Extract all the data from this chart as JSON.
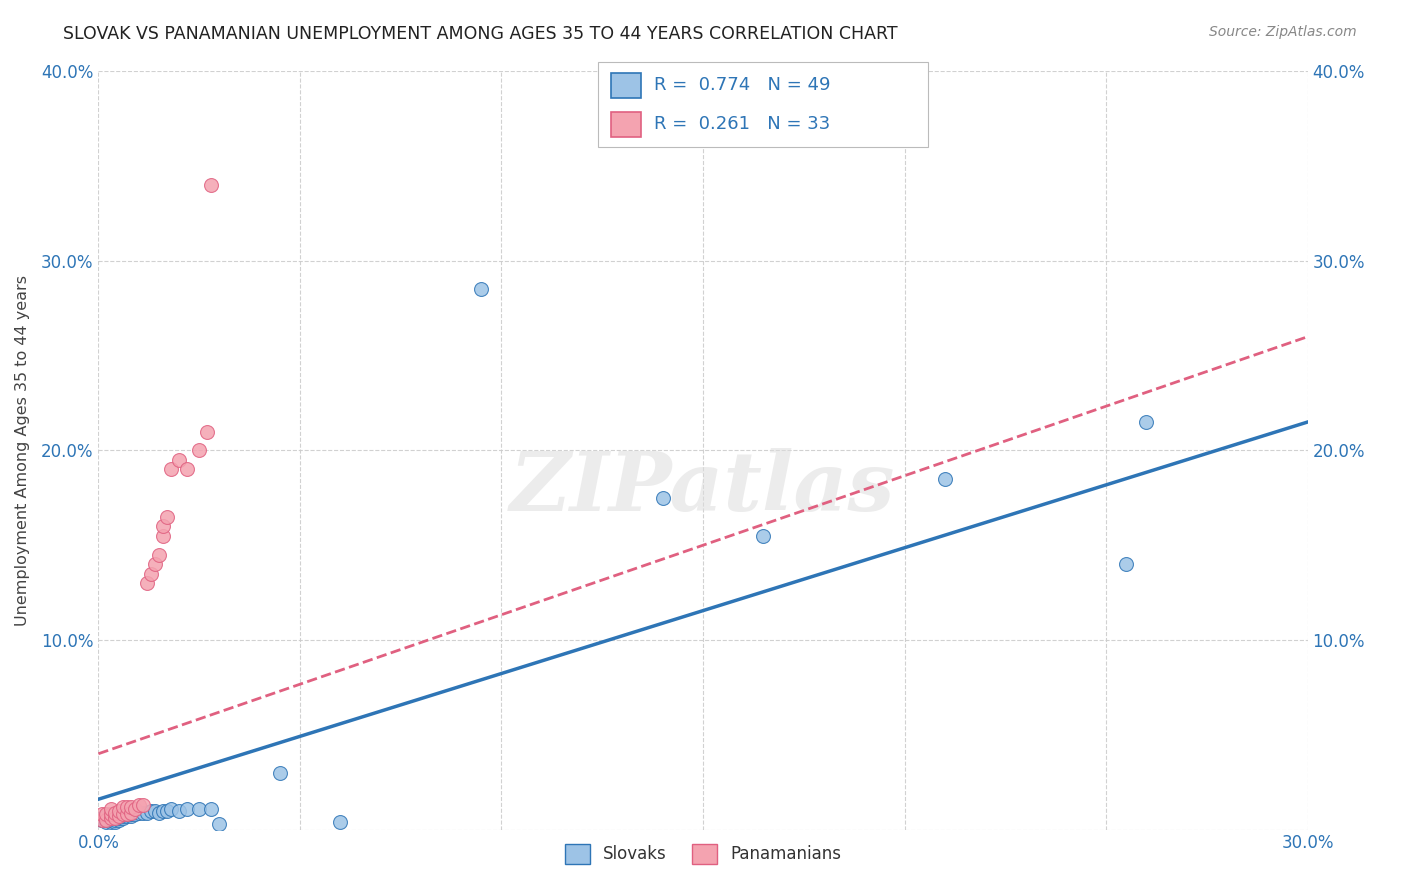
{
  "title": "SLOVAK VS PANAMANIAN UNEMPLOYMENT AMONG AGES 35 TO 44 YEARS CORRELATION CHART",
  "source": "Source: ZipAtlas.com",
  "ylabel": "Unemployment Among Ages 35 to 44 years",
  "xlim": [
    0.0,
    0.3
  ],
  "ylim": [
    0.0,
    0.4
  ],
  "xtick_labels": [
    "0.0%",
    "",
    "",
    "",
    "",
    "",
    "30.0%"
  ],
  "ytick_labels_left": [
    "",
    "10.0%",
    "20.0%",
    "30.0%",
    "40.0%"
  ],
  "ytick_labels_right": [
    "",
    "10.0%",
    "20.0%",
    "30.0%",
    "40.0%"
  ],
  "color_slovak": "#9DC3E6",
  "color_panamanian": "#F4A3B0",
  "color_slovak_line": "#2E75B6",
  "color_panamanian_line": "#E06080",
  "watermark_text": "ZIPatlas",
  "slovak_x": [
    0.001,
    0.001,
    0.001,
    0.002,
    0.002,
    0.002,
    0.002,
    0.003,
    0.003,
    0.003,
    0.003,
    0.003,
    0.004,
    0.004,
    0.004,
    0.004,
    0.005,
    0.005,
    0.005,
    0.005,
    0.006,
    0.006,
    0.007,
    0.007,
    0.008,
    0.008,
    0.009,
    0.01,
    0.011,
    0.012,
    0.013,
    0.014,
    0.015,
    0.016,
    0.017,
    0.018,
    0.02,
    0.022,
    0.025,
    0.028,
    0.03,
    0.045,
    0.06,
    0.095,
    0.14,
    0.165,
    0.21,
    0.255,
    0.26
  ],
  "slovak_y": [
    0.005,
    0.005,
    0.006,
    0.004,
    0.005,
    0.006,
    0.007,
    0.004,
    0.005,
    0.005,
    0.006,
    0.007,
    0.004,
    0.005,
    0.006,
    0.007,
    0.005,
    0.006,
    0.007,
    0.008,
    0.006,
    0.007,
    0.007,
    0.008,
    0.007,
    0.008,
    0.008,
    0.009,
    0.009,
    0.009,
    0.01,
    0.01,
    0.009,
    0.01,
    0.01,
    0.011,
    0.01,
    0.011,
    0.011,
    0.011,
    0.003,
    0.03,
    0.004,
    0.285,
    0.175,
    0.155,
    0.185,
    0.14,
    0.215
  ],
  "panamanian_x": [
    0.001,
    0.001,
    0.002,
    0.002,
    0.003,
    0.003,
    0.003,
    0.004,
    0.004,
    0.005,
    0.005,
    0.006,
    0.006,
    0.007,
    0.007,
    0.008,
    0.008,
    0.009,
    0.01,
    0.011,
    0.012,
    0.013,
    0.014,
    0.015,
    0.016,
    0.016,
    0.017,
    0.018,
    0.02,
    0.022,
    0.025,
    0.027,
    0.028
  ],
  "panamanian_y": [
    0.005,
    0.008,
    0.005,
    0.008,
    0.006,
    0.008,
    0.011,
    0.006,
    0.009,
    0.007,
    0.01,
    0.008,
    0.012,
    0.008,
    0.012,
    0.009,
    0.012,
    0.011,
    0.013,
    0.013,
    0.13,
    0.135,
    0.14,
    0.145,
    0.155,
    0.16,
    0.165,
    0.19,
    0.195,
    0.19,
    0.2,
    0.21,
    0.34
  ],
  "trend_slovak_x0": 0.0,
  "trend_slovak_y0": 0.016,
  "trend_slovak_x1": 0.3,
  "trend_slovak_y1": 0.215,
  "trend_pana_x0": 0.0,
  "trend_pana_y0": 0.04,
  "trend_pana_x1": 0.3,
  "trend_pana_y1": 0.26
}
